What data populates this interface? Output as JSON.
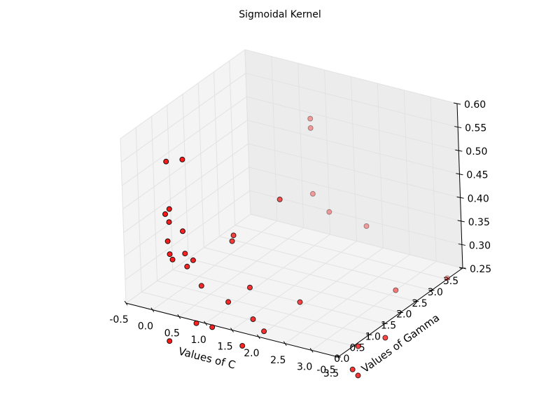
{
  "chart_data": {
    "type": "scatter",
    "title": "Sigmoidal Kernel",
    "xlabel": "Values of C",
    "ylabel": "Values of Gamma",
    "zlabel": "",
    "xlim": [
      -0.5,
      3.5
    ],
    "ylim": [
      -0.5,
      3.5
    ],
    "zlim": [
      0.25,
      0.6
    ],
    "xticks": [
      "-0.5",
      "0.0",
      "0.5",
      "1.0",
      "1.5",
      "2.0",
      "2.5",
      "3.0",
      "3.5"
    ],
    "yticks": [
      "-0.5",
      "0.0",
      "0.5",
      "1.0",
      "1.5",
      "2.0",
      "2.5",
      "3.0",
      "3.5"
    ],
    "zticks": [
      "0.25",
      "0.30",
      "0.35",
      "0.40",
      "0.45",
      "0.50",
      "0.55",
      "0.60"
    ],
    "grid": true,
    "marker_color": "#ff0000",
    "marker_edge": "#000000",
    "points": [
      {
        "x": 0.02,
        "y": 0.05,
        "z": 0.54
      },
      {
        "x": 0.3,
        "y": 0.1,
        "z": 0.55
      },
      {
        "x": 0.05,
        "y": 0.05,
        "z": 0.44
      },
      {
        "x": 0.0,
        "y": 0.0,
        "z": 0.43
      },
      {
        "x": 0.02,
        "y": 0.08,
        "z": 0.41
      },
      {
        "x": 0.2,
        "y": 0.2,
        "z": 0.39
      },
      {
        "x": 0.0,
        "y": 0.05,
        "z": 0.37
      },
      {
        "x": 0.2,
        "y": 0.25,
        "z": 0.34
      },
      {
        "x": 0.0,
        "y": 0.1,
        "z": 0.34
      },
      {
        "x": 0.05,
        "y": 0.1,
        "z": 0.33
      },
      {
        "x": 0.35,
        "y": 0.25,
        "z": 0.33
      },
      {
        "x": 0.2,
        "y": 0.3,
        "z": 0.31
      },
      {
        "x": 0.4,
        "y": 0.4,
        "z": 0.27
      },
      {
        "x": 0.8,
        "y": 0.8,
        "z": 0.37
      },
      {
        "x": 0.8,
        "y": 0.75,
        "z": 0.36
      },
      {
        "x": 1.4,
        "y": 1.3,
        "z": 0.44
      },
      {
        "x": 0.4,
        "y": 0.2,
        "z": 0.2
      },
      {
        "x": 0.7,
        "y": 0.2,
        "z": 0.2
      },
      {
        "x": 0.9,
        "y": 0.4,
        "z": 0.25
      },
      {
        "x": 1.2,
        "y": 0.6,
        "z": 0.28
      },
      {
        "x": 1.3,
        "y": 0.5,
        "z": 0.22
      },
      {
        "x": 1.5,
        "y": 0.5,
        "z": 0.2
      },
      {
        "x": 1.2,
        "y": 0.3,
        "z": 0.17
      },
      {
        "x": 1.9,
        "y": 1.0,
        "z": 0.25
      },
      {
        "x": 0.0,
        "y": 0.0,
        "z": 0.16
      },
      {
        "x": 1.0,
        "y": 3.0,
        "z": 0.52
      },
      {
        "x": 1.0,
        "y": 3.0,
        "z": 0.5
      },
      {
        "x": 1.0,
        "y": 3.0,
        "z": 0.36
      },
      {
        "x": 1.3,
        "y": 3.0,
        "z": 0.33
      },
      {
        "x": 2.0,
        "y": 3.0,
        "z": 0.32
      },
      {
        "x": 3.0,
        "y": 2.2,
        "z": 0.25
      },
      {
        "x": 3.2,
        "y": 3.5,
        "z": 0.22
      },
      {
        "x": 3.1,
        "y": 0.8,
        "z": 0.2
      },
      {
        "x": 3.5,
        "y": 1.0,
        "z": 0.22
      },
      {
        "x": 3.1,
        "y": 0.6,
        "z": 0.16
      },
      {
        "x": 3.2,
        "y": 0.6,
        "z": 0.15
      }
    ]
  }
}
